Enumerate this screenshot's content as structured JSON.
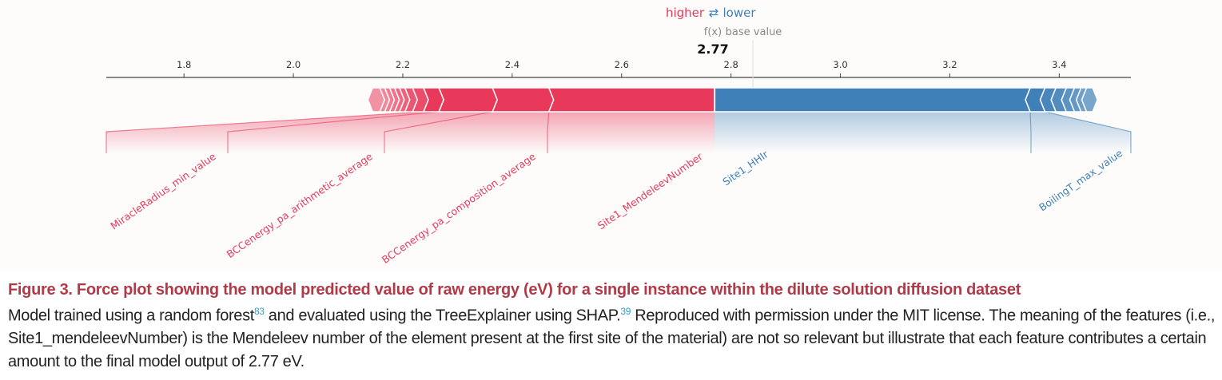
{
  "chart_data": {
    "type": "force-plot",
    "legend": {
      "higher": "higher",
      "arrows": "⇄",
      "lower": "lower"
    },
    "fx_label": "f(x)",
    "base_label": "base value",
    "output_value": 2.77,
    "output_text": "2.77",
    "base_value": 2.84,
    "xlim": [
      1.658,
      3.531
    ],
    "ticks": [
      1.8,
      2.0,
      2.2,
      2.4,
      2.6,
      2.8,
      3.0,
      3.2,
      3.4
    ],
    "tick_labels": [
      "1.8",
      "2.0",
      "2.2",
      "2.4",
      "2.6",
      "2.8",
      "3.0",
      "3.2",
      "3.4"
    ],
    "colors": {
      "positive": "#e8395a",
      "negative": "#3f80b8",
      "positive_label": "#e8395a",
      "negative_label": "#3f80b8"
    },
    "positive_segments": [
      {
        "from": 2.145,
        "to": 2.158,
        "name": ""
      },
      {
        "from": 2.158,
        "to": 2.167,
        "name": ""
      },
      {
        "from": 2.167,
        "to": 2.176,
        "name": ""
      },
      {
        "from": 2.176,
        "to": 2.185,
        "name": ""
      },
      {
        "from": 2.185,
        "to": 2.194,
        "name": ""
      },
      {
        "from": 2.194,
        "to": 2.204,
        "name": ""
      },
      {
        "from": 2.204,
        "to": 2.218,
        "name": ""
      },
      {
        "from": 2.218,
        "to": 2.238,
        "name": ""
      },
      {
        "from": 2.238,
        "to": 2.266,
        "name": "MiracleRadius_min_value"
      },
      {
        "from": 2.266,
        "to": 2.364,
        "name": "BCCenergy_pa_arithmetic_average"
      },
      {
        "from": 2.364,
        "to": 2.467,
        "name": "BCCenergy_pa_composition_average"
      },
      {
        "from": 2.467,
        "to": 2.77,
        "name": "Site1_MendeleevNumber"
      }
    ],
    "negative_segments": [
      {
        "from": 2.77,
        "to": 3.347,
        "name": "Site1_HHIr"
      },
      {
        "from": 3.347,
        "to": 3.374,
        "name": "BoilingT_max_value"
      },
      {
        "from": 3.374,
        "to": 3.394,
        "name": ""
      },
      {
        "from": 3.394,
        "to": 3.413,
        "name": ""
      },
      {
        "from": 3.413,
        "to": 3.428,
        "name": ""
      },
      {
        "from": 3.428,
        "to": 3.44,
        "name": ""
      },
      {
        "from": 3.44,
        "to": 3.45,
        "name": ""
      },
      {
        "from": 3.45,
        "to": 3.461,
        "name": ""
      }
    ]
  },
  "caption": {
    "title": "Figure 3.  Force plot showing the model predicted value of raw energy (eV) for a single instance within the dilute solution diffusion dataset",
    "body_part1": "Model trained using a random forest",
    "ref1": "83",
    "body_part2": " and evaluated using the TreeExplainer using SHAP.",
    "ref2": "39",
    "body_part3": " Reproduced with permission under the MIT license. The meaning of the features (i.e., Site1_mendeleevNumber) is the Mendeleev number of the element present at the first site of the material) are not so relevant but illustrate that each feature contributes a certain amount to the final model output of 2.77 eV."
  }
}
